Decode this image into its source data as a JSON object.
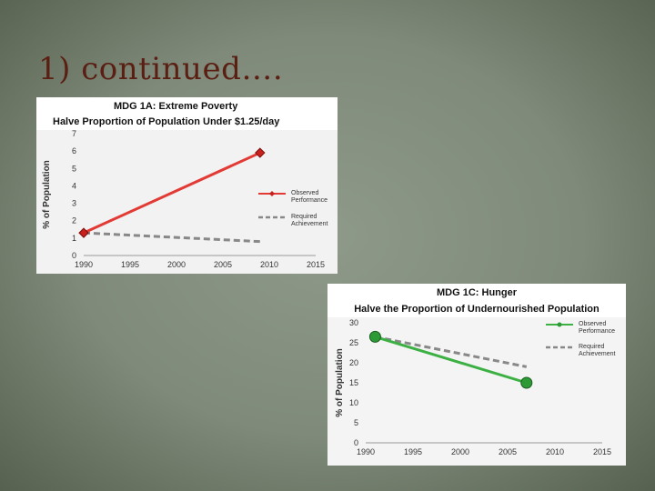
{
  "slide": {
    "title": "1) continued…."
  },
  "chart_data": [
    {
      "type": "line",
      "title": "MDG 1A: Extreme Poverty",
      "subtitle": "Halve Proportion of Population Under $1.25/day",
      "ylabel": "% of Population",
      "xlim": [
        1990,
        2015
      ],
      "ylim": [
        0,
        7
      ],
      "xticks": [
        "1990",
        "1995",
        "2000",
        "2005",
        "2010",
        "2015"
      ],
      "yticks": [
        "0",
        "1",
        "2",
        "3",
        "4",
        "5",
        "6",
        "7"
      ],
      "grid": false,
      "legend": "right",
      "colors": {
        "observed": "#e23a34",
        "marker": "#c8201c",
        "required": "#888888"
      },
      "series": [
        {
          "name": "Observed Performance",
          "name_lines": [
            "Observed",
            "Performance"
          ],
          "x": [
            1990,
            2009
          ],
          "y": [
            1.3,
            5.9
          ],
          "style": "solid",
          "marker": "diamond"
        },
        {
          "name": "Required Achievement",
          "name_lines": [
            "Required",
            "Achievement"
          ],
          "x": [
            1990,
            2009
          ],
          "y": [
            1.3,
            0.8
          ],
          "style": "dashed",
          "marker": "none"
        }
      ]
    },
    {
      "type": "line",
      "title": "MDG 1C: Hunger",
      "subtitle": "Halve the Proportion of Undernourished Population",
      "ylabel": "% of Population",
      "xlim": [
        1990,
        2015
      ],
      "ylim": [
        0,
        30
      ],
      "xticks": [
        "1990",
        "1995",
        "2000",
        "2005",
        "2010",
        "2015"
      ],
      "yticks": [
        "0",
        "5",
        "10",
        "15",
        "20",
        "25",
        "30"
      ],
      "grid": false,
      "legend": "top-right",
      "colors": {
        "observed": "#3cb043",
        "marker": "#2d9a35",
        "required": "#888888"
      },
      "series": [
        {
          "name": "Observed Performance",
          "name_lines": [
            "Observed",
            "Performance"
          ],
          "x": [
            1991,
            2007
          ],
          "y": [
            26.5,
            15
          ],
          "style": "solid",
          "marker": "circle"
        },
        {
          "name": "Required Achievement",
          "name_lines": [
            "Required",
            "Achievement"
          ],
          "x": [
            1991,
            2007
          ],
          "y": [
            26.5,
            19
          ],
          "style": "dashed",
          "marker": "none"
        }
      ]
    }
  ]
}
